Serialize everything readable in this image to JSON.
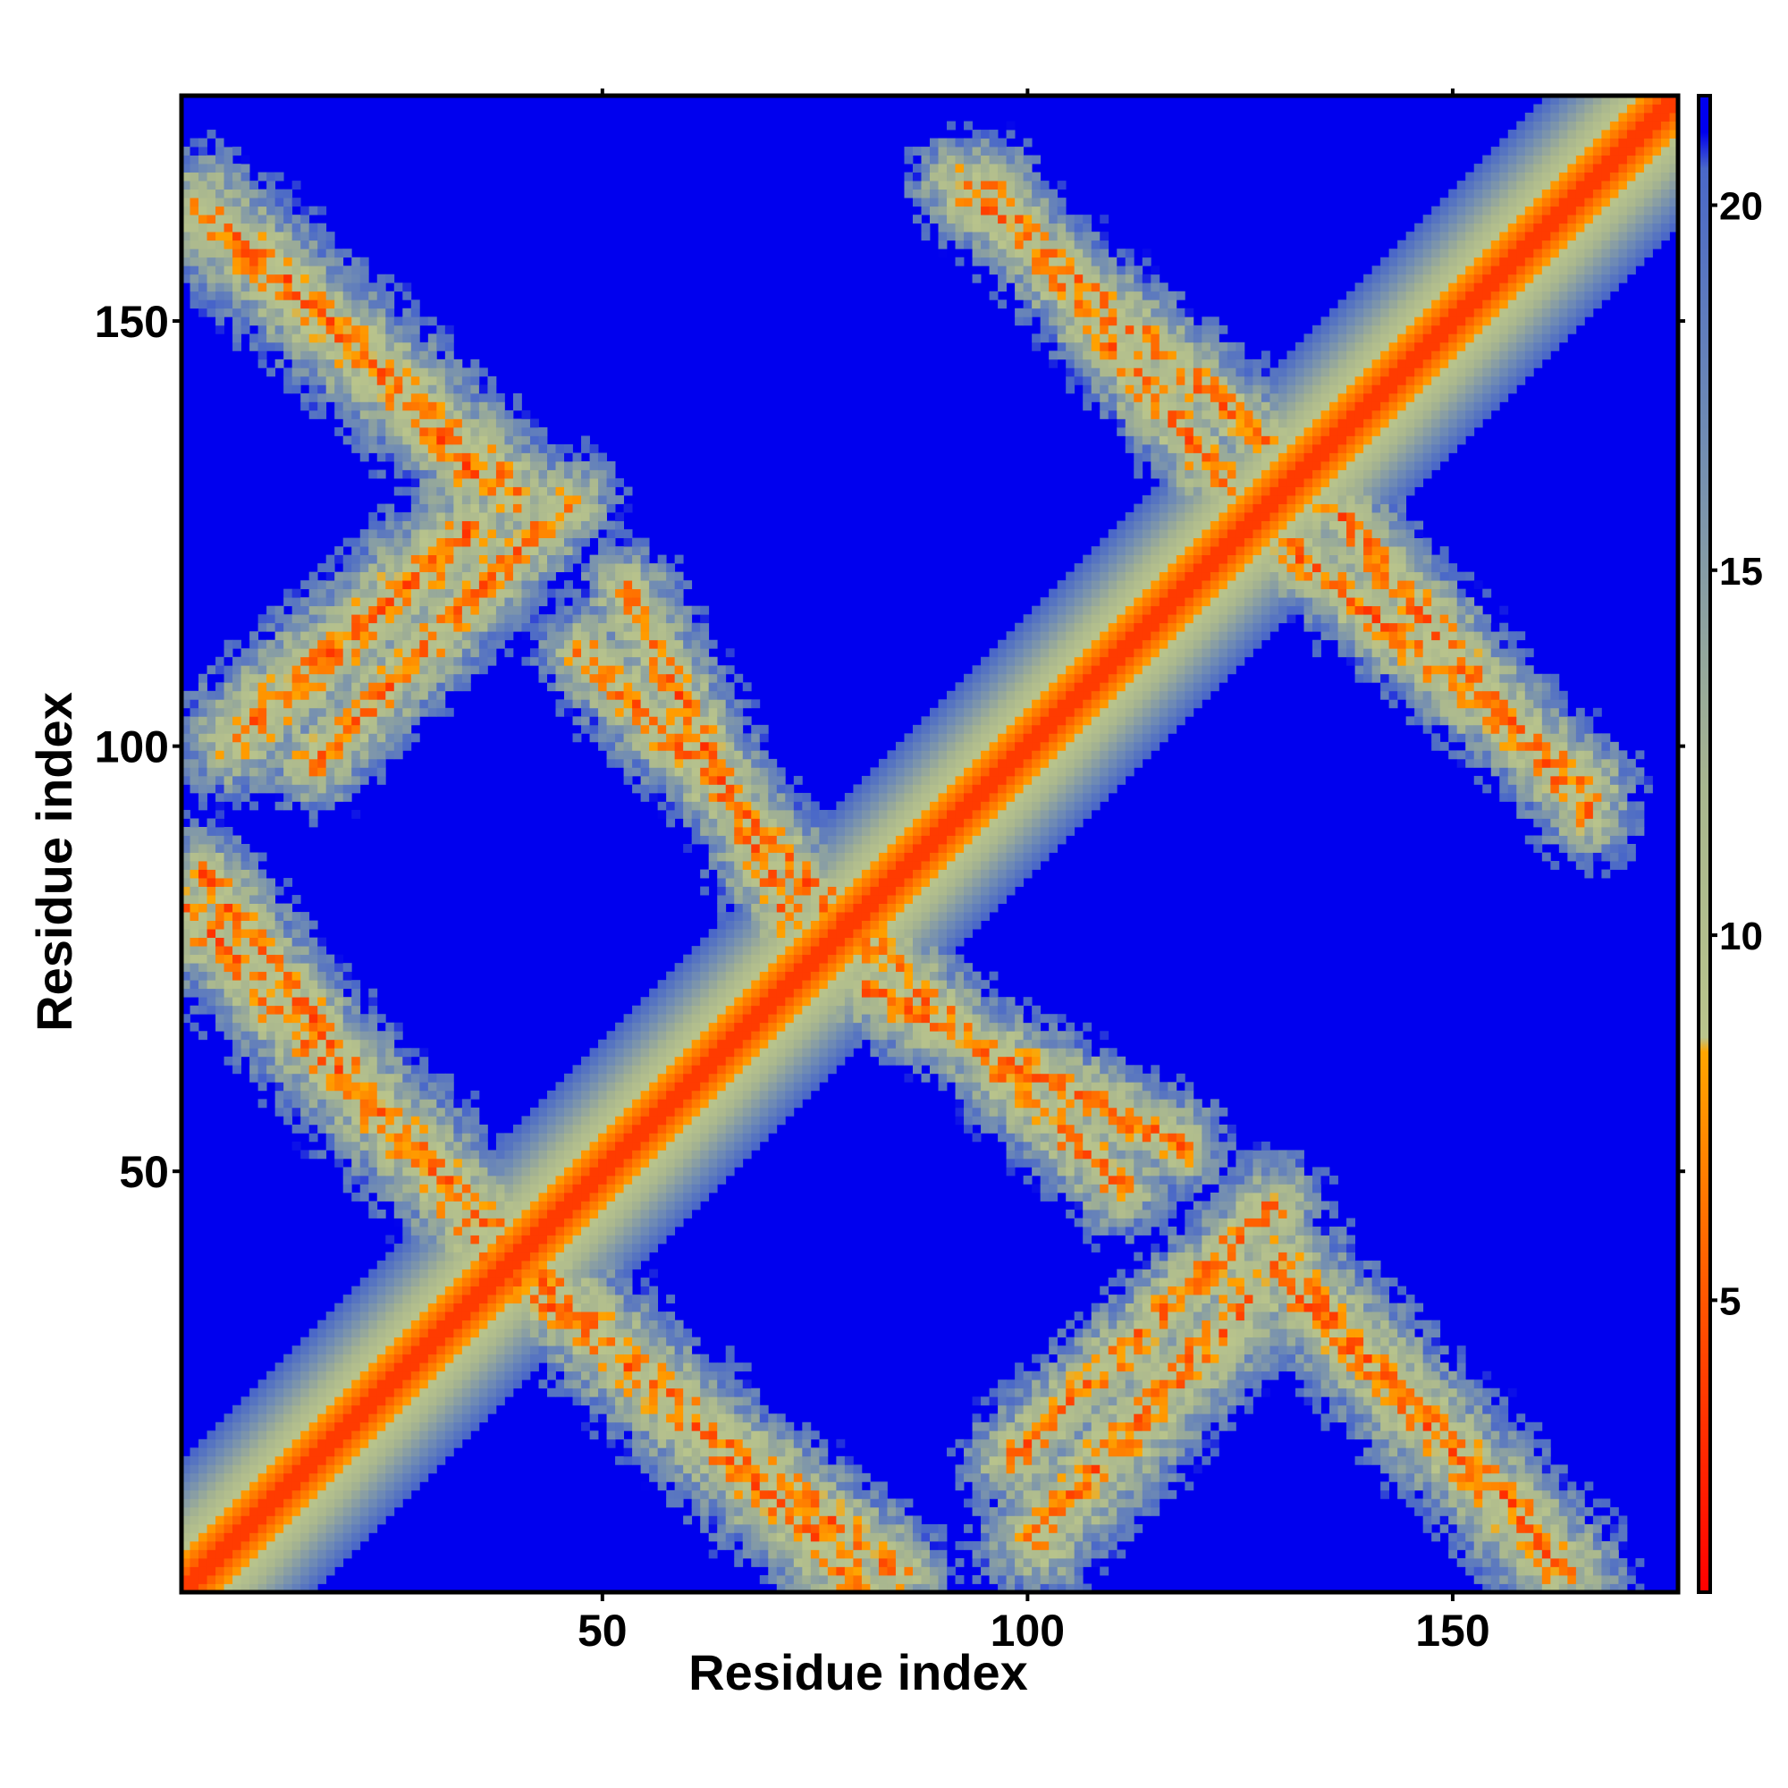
{
  "chart_data": {
    "type": "heatmap",
    "title": "",
    "xlabel": "Residue index",
    "ylabel": "Residue index",
    "n_residues": 176,
    "xlim": [
      1,
      176
    ],
    "ylim": [
      1,
      176
    ],
    "x_ticks": [
      50,
      100,
      150
    ],
    "y_ticks": [
      50,
      100,
      150
    ],
    "x_tick_labels": [
      "50",
      "100",
      "150"
    ],
    "y_tick_labels": [
      "50",
      "100",
      "150"
    ],
    "colorbar": {
      "ticks": [
        5,
        10,
        15,
        20
      ],
      "tick_labels": [
        "5",
        "10",
        "15",
        "20"
      ],
      "range": [
        1,
        21.5
      ],
      "colors": [
        {
          "value": 1,
          "color": "#ff0000"
        },
        {
          "value": 4.5,
          "color": "#ff4a00"
        },
        {
          "value": 8.4,
          "color": "#ffa500"
        },
        {
          "value": 8.6,
          "color": "#b9c48c"
        },
        {
          "value": 12,
          "color": "#a8b68f"
        },
        {
          "value": 17,
          "color": "#6e8ab5"
        },
        {
          "value": 20.5,
          "color": "#4a68c8"
        },
        {
          "value": 21,
          "color": "#0000ee"
        }
      ],
      "saturated_color": "#0000ee"
    },
    "contact_bands": [
      {
        "from": [
          3,
          163
        ],
        "to": [
          40,
          129
        ],
        "width": 5
      },
      {
        "from": [
          35,
          126
        ],
        "to": [
          7,
          101
        ],
        "width": 5
      },
      {
        "from": [
          1,
          81
        ],
        "to": [
          37,
          43
        ],
        "width": 5
      },
      {
        "from": [
          40,
          37
        ],
        "to": [
          85,
          3
        ],
        "width": 4
      },
      {
        "from": [
          48,
          111
        ],
        "to": [
          84,
          74
        ],
        "width": 4
      },
      {
        "from": [
          80,
          72
        ],
        "to": [
          118,
          53
        ],
        "width": 4
      },
      {
        "from": [
          92,
          166
        ],
        "to": [
          128,
          136
        ],
        "width": 4
      },
      {
        "from": [
          131,
          123
        ],
        "to": [
          166,
          95
        ],
        "width": 4
      },
      {
        "from": [
          98,
          16
        ],
        "to": [
          129,
          46
        ],
        "width": 4
      },
      {
        "from": [
          132,
          35
        ],
        "to": [
          158,
          10
        ],
        "width": 4
      }
    ]
  }
}
